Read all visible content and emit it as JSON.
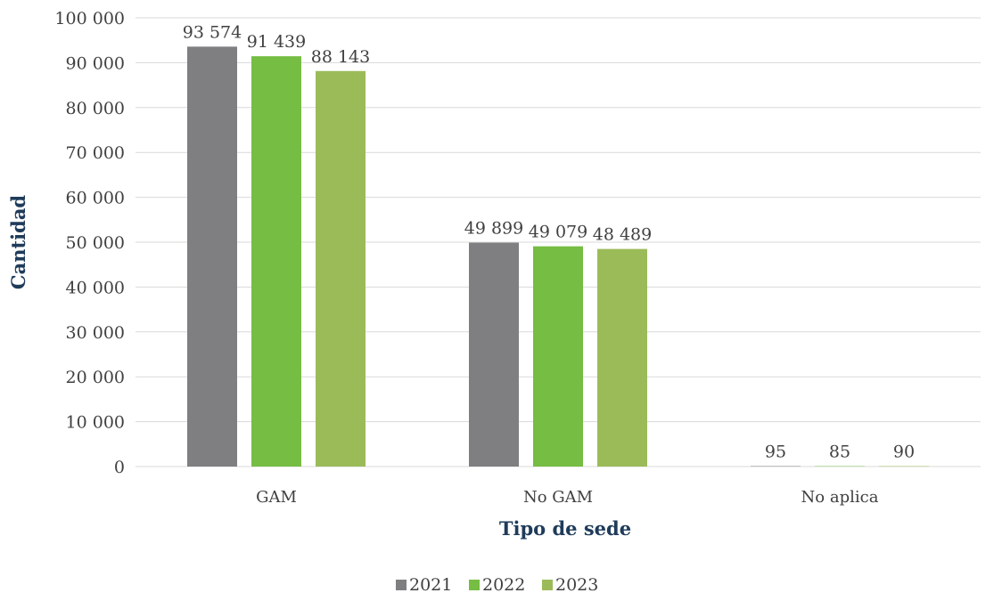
{
  "chart_data": {
    "type": "bar",
    "title": "",
    "xlabel": "Tipo de sede",
    "ylabel": "Cantidad",
    "categories": [
      "GAM",
      "No GAM",
      "No aplica"
    ],
    "series": [
      {
        "name": "2021",
        "color": "#7f7f82",
        "values": [
          93574,
          49899,
          95
        ],
        "labels": [
          "93 574",
          "49 899",
          "95"
        ]
      },
      {
        "name": "2022",
        "color": "#76bd43",
        "values": [
          91439,
          49079,
          85
        ],
        "labels": [
          "91 439",
          "49 079",
          "85"
        ]
      },
      {
        "name": "2023",
        "color": "#9bbb59",
        "values": [
          88143,
          48489,
          90
        ],
        "labels": [
          "88 143",
          "48 489",
          "90"
        ]
      }
    ],
    "ylim": [
      0,
      100000
    ],
    "yticks": [
      0,
      10000,
      20000,
      30000,
      40000,
      50000,
      60000,
      70000,
      80000,
      90000,
      100000
    ],
    "ytick_labels": [
      "0",
      "10 000",
      "20 000",
      "30 000",
      "40 000",
      "50 000",
      "60 000",
      "70 000",
      "80 000",
      "90 000",
      "100 000"
    ],
    "grid": true,
    "gridline_color": "#d9d9d9",
    "legend_position": "bottom"
  }
}
